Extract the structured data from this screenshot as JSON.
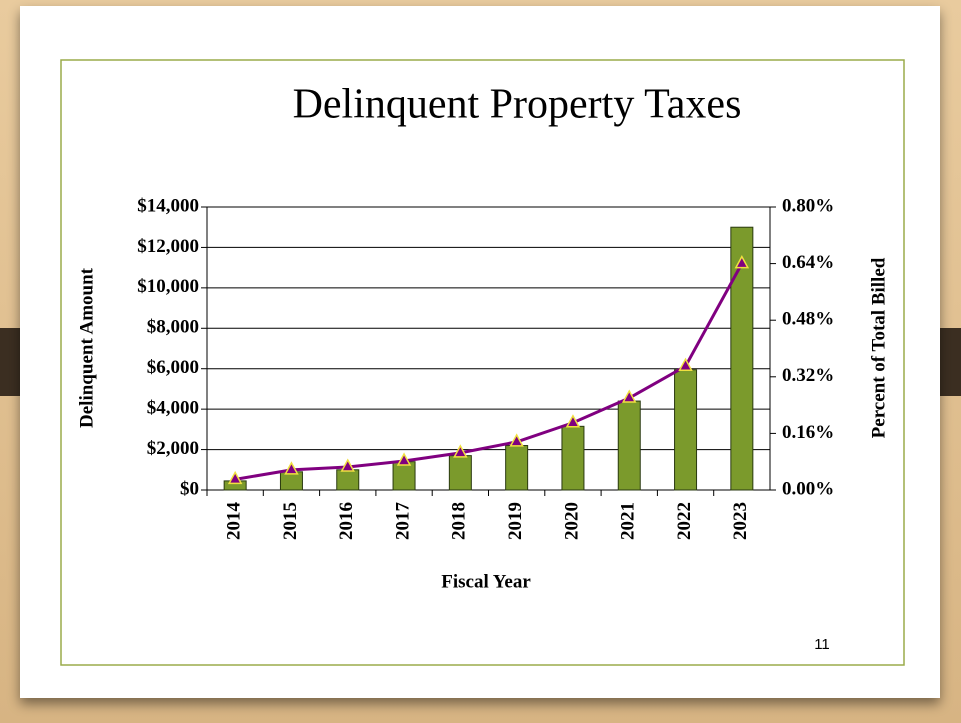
{
  "page_number": "11",
  "chart_data": {
    "type": "bar",
    "title": "Delinquent Property Taxes",
    "x_label": "Fiscal Year",
    "y_label": "Delinquent Amount",
    "y2_label": "Percent of Total Billed",
    "categories": [
      "2014",
      "2015",
      "2016",
      "2017",
      "2018",
      "2019",
      "2020",
      "2021",
      "2022",
      "2023"
    ],
    "series": [
      {
        "type": "bar",
        "color": "#7b9a2c",
        "values": [
          450,
          900,
          1000,
          1400,
          1700,
          2200,
          3150,
          4400,
          5950,
          13000
        ]
      },
      {
        "type": "line",
        "axis": "y2",
        "color": "#800080",
        "marker_color": "#f0e040",
        "values": [
          0.03,
          0.057,
          0.065,
          0.082,
          0.105,
          0.136,
          0.19,
          0.26,
          0.35,
          0.64
        ]
      }
    ],
    "ylim": [
      0,
      14000
    ],
    "yticks": [
      {
        "value": 0,
        "label": "$0"
      },
      {
        "value": 2000,
        "label": "$2,000"
      },
      {
        "value": 4000,
        "label": "$4,000"
      },
      {
        "value": 6000,
        "label": "$6,000"
      },
      {
        "value": 8000,
        "label": "$8,000"
      },
      {
        "value": 10000,
        "label": "$10,000"
      },
      {
        "value": 12000,
        "label": "$12,000"
      },
      {
        "value": 14000,
        "label": "$14,000"
      }
    ],
    "y2lim": [
      0,
      0.8
    ],
    "y2ticks": [
      {
        "value": 0,
        "label": "0.00%"
      },
      {
        "value": 0.16,
        "label": "0.16%"
      },
      {
        "value": 0.32,
        "label": "0.32%"
      },
      {
        "value": 0.48,
        "label": "0.48%"
      },
      {
        "value": 0.64,
        "label": "0.64%"
      },
      {
        "value": 0.8,
        "label": "0.80%"
      }
    ],
    "grid": true
  }
}
